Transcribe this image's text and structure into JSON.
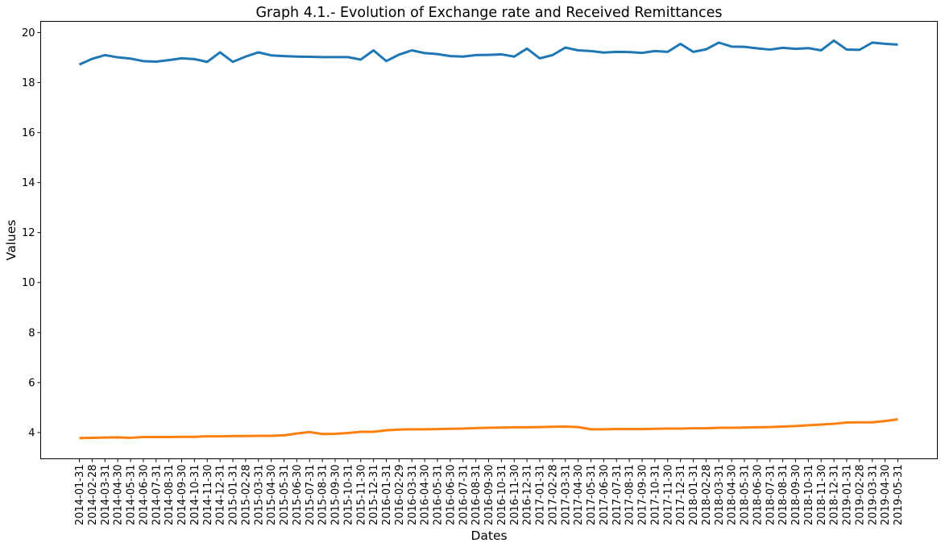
{
  "chart_data": {
    "type": "line",
    "title": "Graph 4.1.- Evolution of Exchange rate and Received Remittances",
    "xlabel": "Dates",
    "ylabel": "Values",
    "ylim": [
      2.95,
      20.45
    ],
    "yticks": [
      4,
      6,
      8,
      10,
      12,
      14,
      16,
      18,
      20
    ],
    "grid": false,
    "legend": "none",
    "x": [
      "2014-01-31",
      "2014-02-28",
      "2014-03-31",
      "2014-04-30",
      "2014-05-31",
      "2014-06-30",
      "2014-07-31",
      "2014-08-31",
      "2014-09-30",
      "2014-10-31",
      "2014-11-30",
      "2014-12-31",
      "2015-01-31",
      "2015-02-28",
      "2015-03-31",
      "2015-04-30",
      "2015-05-31",
      "2015-06-30",
      "2015-07-31",
      "2015-08-31",
      "2015-09-30",
      "2015-10-31",
      "2015-11-30",
      "2015-12-31",
      "2016-01-31",
      "2016-02-29",
      "2016-03-31",
      "2016-04-30",
      "2016-05-31",
      "2016-06-30",
      "2016-07-31",
      "2016-08-31",
      "2016-09-30",
      "2016-10-31",
      "2016-11-30",
      "2016-12-31",
      "2017-01-31",
      "2017-02-28",
      "2017-03-31",
      "2017-04-30",
      "2017-05-31",
      "2017-06-30",
      "2017-07-31",
      "2017-08-31",
      "2017-09-30",
      "2017-10-31",
      "2017-11-30",
      "2017-12-31",
      "2018-01-31",
      "2018-02-28",
      "2018-03-31",
      "2018-04-30",
      "2018-05-31",
      "2018-06-30",
      "2018-07-31",
      "2018-08-31",
      "2018-09-30",
      "2018-10-31",
      "2018-11-30",
      "2018-12-31",
      "2019-01-31",
      "2019-02-28",
      "2019-03-31",
      "2019-04-30",
      "2019-05-31"
    ],
    "series": [
      {
        "color": "#1f77b4",
        "values": [
          18.72,
          18.95,
          19.1,
          19.01,
          18.96,
          18.86,
          18.84,
          18.9,
          18.97,
          18.94,
          18.83,
          19.21,
          18.83,
          19.04,
          19.21,
          19.09,
          19.06,
          19.04,
          19.03,
          19.02,
          19.02,
          19.02,
          18.92,
          19.29,
          18.86,
          19.12,
          19.29,
          19.18,
          19.14,
          19.06,
          19.04,
          19.1,
          19.11,
          19.13,
          19.04,
          19.36,
          18.97,
          19.1,
          19.4,
          19.29,
          19.26,
          19.2,
          19.23,
          19.22,
          19.19,
          19.26,
          19.23,
          19.55,
          19.23,
          19.33,
          19.6,
          19.44,
          19.43,
          19.37,
          19.32,
          19.39,
          19.35,
          19.38,
          19.29,
          19.68,
          19.32,
          19.31,
          19.6,
          19.55,
          19.52
        ]
      },
      {
        "color": "#ff7f0e",
        "values": [
          3.78,
          3.79,
          3.8,
          3.81,
          3.79,
          3.82,
          3.82,
          3.82,
          3.83,
          3.83,
          3.85,
          3.85,
          3.86,
          3.86,
          3.87,
          3.87,
          3.89,
          3.96,
          4.02,
          3.94,
          3.95,
          3.98,
          4.03,
          4.03,
          4.09,
          4.12,
          4.13,
          4.13,
          4.14,
          4.15,
          4.16,
          4.18,
          4.19,
          4.2,
          4.21,
          4.21,
          4.22,
          4.23,
          4.24,
          4.22,
          4.13,
          4.13,
          4.14,
          4.14,
          4.14,
          4.15,
          4.16,
          4.16,
          4.17,
          4.17,
          4.19,
          4.19,
          4.2,
          4.21,
          4.22,
          4.24,
          4.26,
          4.29,
          4.32,
          4.35,
          4.4,
          4.41,
          4.41,
          4.46,
          4.53
        ]
      }
    ]
  }
}
